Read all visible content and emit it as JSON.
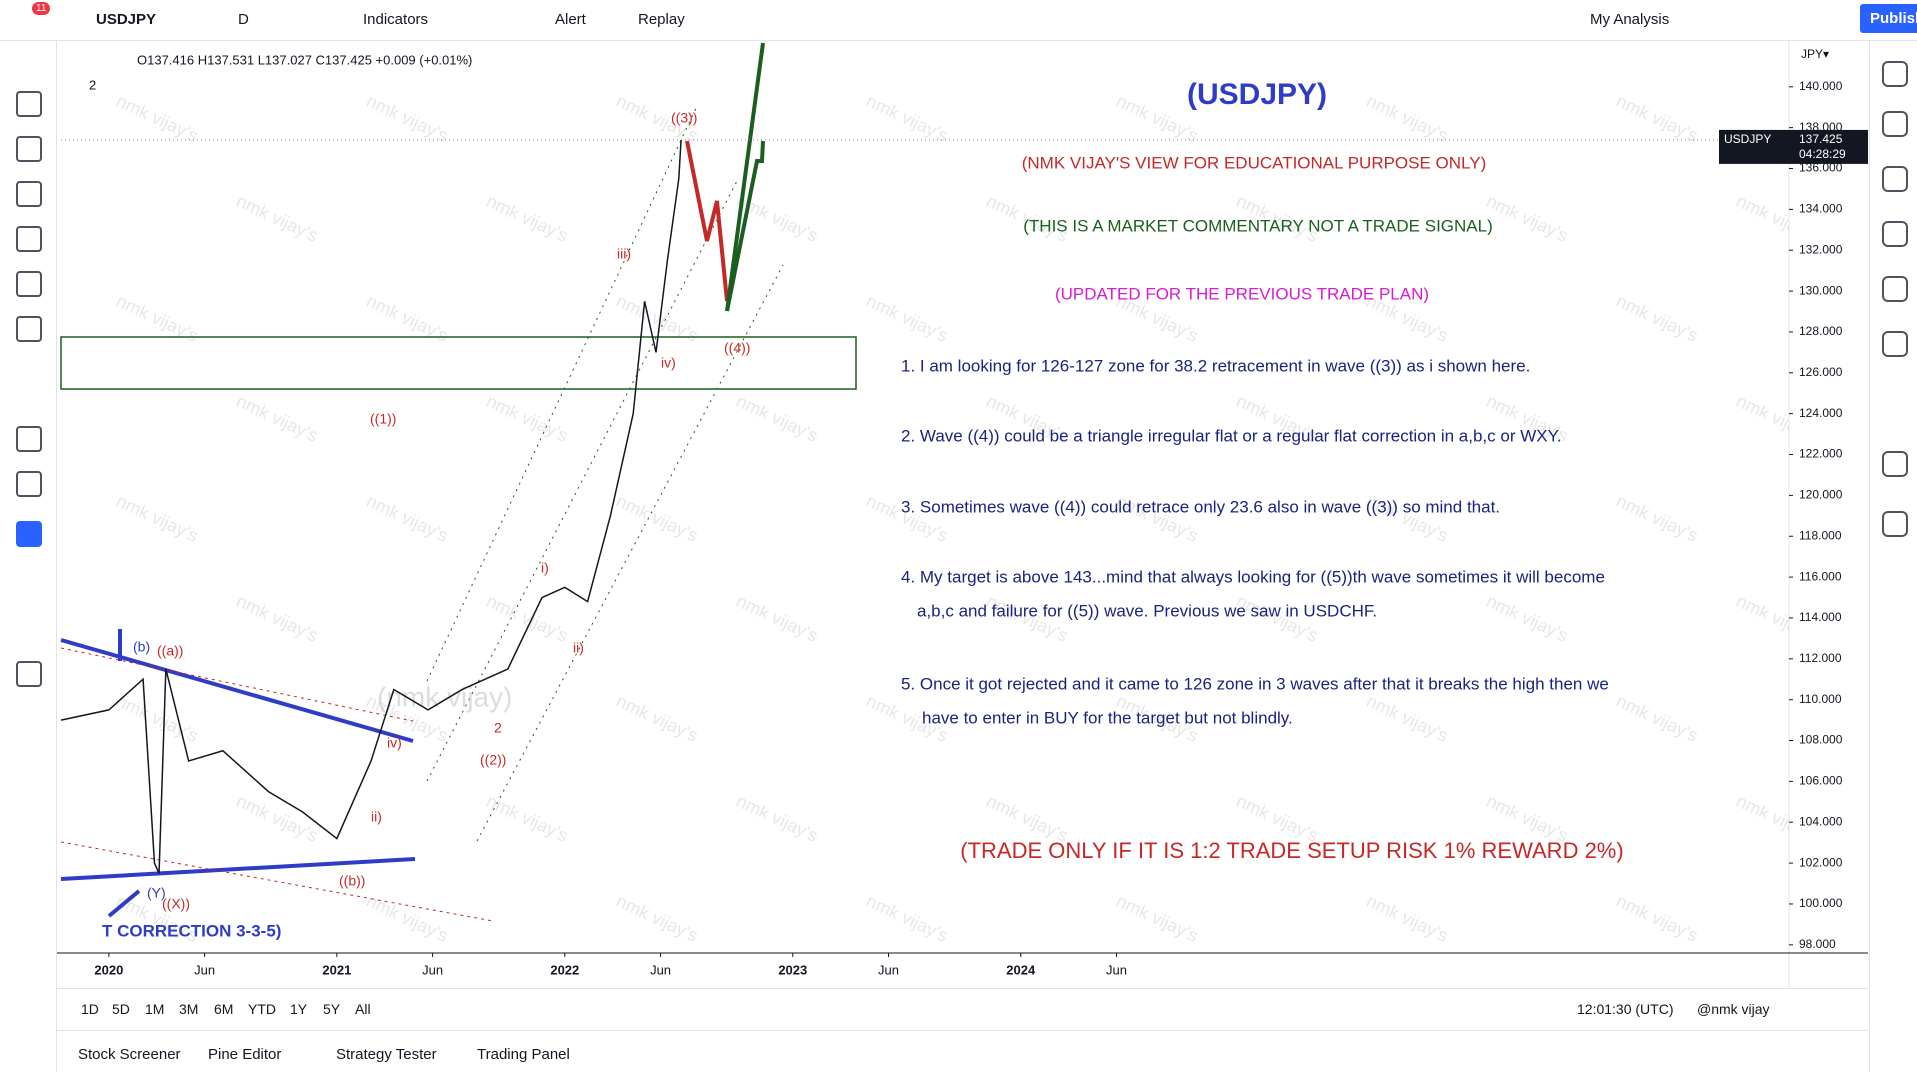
{
  "toolbar": {
    "badge": "11",
    "symbol": "USDJPY",
    "interval": "D",
    "indicators": "Indicators",
    "alert": "Alert",
    "replay": "Replay",
    "layout": "My Analysis",
    "publish": "Publish"
  },
  "legend": {
    "ohlc": "O137.416 H137.531 L137.027 C137.425 +0.009 (+0.01%)",
    "count": "2"
  },
  "chart_data": {
    "type": "line",
    "currency": "JPY▾",
    "price_tag": {
      "symbol": "USDJPY",
      "price": "137.425",
      "countdown": "04:28:29"
    },
    "x": [
      2019.79,
      2020.0,
      2020.15,
      2020.2,
      2020.22,
      2020.25,
      2020.35,
      2020.5,
      2020.7,
      2020.85,
      2021.0,
      2021.15,
      2021.25,
      2021.4,
      2021.55,
      2021.75,
      2021.9,
      2022.0,
      2022.1,
      2022.2,
      2022.3,
      2022.35,
      2022.4,
      2022.45,
      2022.5,
      2022.51
    ],
    "series": [
      {
        "name": "USDJPY",
        "color": "#131722",
        "values": [
          109,
          109.5,
          111,
          102,
          101.5,
          111.5,
          107,
          107.5,
          105.5,
          104.5,
          103.2,
          107,
          110.5,
          109.5,
          110.5,
          111.5,
          115,
          115.5,
          114.8,
          119,
          124,
          129.5,
          127,
          131.5,
          135.5,
          137.4
        ]
      }
    ],
    "xlim": [
      2019.79,
      2027.37
    ],
    "ylim": [
      97.6,
      141.85
    ],
    "xticks": [
      {
        "value": 2020,
        "label": "2020"
      },
      {
        "value": 2020.42,
        "label": "Jun"
      },
      {
        "value": 2021,
        "label": "2021"
      },
      {
        "value": 2021.42,
        "label": "Jun"
      },
      {
        "value": 2022,
        "label": "2022"
      },
      {
        "value": 2022.42,
        "label": "Jun"
      },
      {
        "value": 2023,
        "label": "2023"
      },
      {
        "value": 2023.42,
        "label": "Jun"
      },
      {
        "value": 2024,
        "label": "2024"
      },
      {
        "value": 2024.42,
        "label": "Jun"
      }
    ],
    "yticks": [
      {
        "value": 98,
        "label": "98.000"
      },
      {
        "value": 100,
        "label": "100.000"
      },
      {
        "value": 102,
        "label": "102.000"
      },
      {
        "value": 104,
        "label": "104.000"
      },
      {
        "value": 106,
        "label": "106.000"
      },
      {
        "value": 108,
        "label": "108.000"
      },
      {
        "value": 110,
        "label": "110.000"
      },
      {
        "value": 112,
        "label": "112.000"
      },
      {
        "value": 114,
        "label": "114.000"
      },
      {
        "value": 116,
        "label": "116.000"
      },
      {
        "value": 118,
        "label": "118.000"
      },
      {
        "value": 120,
        "label": "120.000"
      },
      {
        "value": 122,
        "label": "122.000"
      },
      {
        "value": 124,
        "label": "124.000"
      },
      {
        "value": 126,
        "label": "126.000"
      },
      {
        "value": 128,
        "label": "128.000"
      },
      {
        "value": 130,
        "label": "130.000"
      },
      {
        "value": 132,
        "label": "132.000"
      },
      {
        "value": 134,
        "label": "134.000"
      },
      {
        "value": 136,
        "label": "136.000"
      },
      {
        "value": 138,
        "label": "138.000"
      },
      {
        "value": 140,
        "label": "140.000"
      }
    ],
    "waves": [
      "((1))",
      "((2))",
      "((3))",
      "((4))",
      "((a))",
      "((b))",
      "((X))",
      "(b)",
      "(Y)",
      "iii)",
      "iv)",
      "i)",
      "ii)",
      "iv)",
      "ii)",
      "2"
    ],
    "correction": "T CORRECTION 3-3-5)",
    "watermark": "nmk vijay's",
    "center_watermark": "(nmk vijay)"
  },
  "commentary": {
    "title": "(USDJPY)",
    "disclaimer": "(NMK VIJAY'S VIEW FOR EDUCATIONAL PURPOSE ONLY)",
    "note": "(THIS IS A MARKET COMMENTARY NOT A TRADE SIGNAL)",
    "update": "(UPDATED FOR THE PREVIOUS TRADE PLAN)",
    "points": [
      "1. I am looking for 126-127 zone for 38.2 retracement in wave ((3)) as i shown here.",
      "2. Wave ((4)) could be a triangle irregular flat or a regular flat correction in a,b,c or WXY.",
      "3. Sometimes wave ((4)) could retrace only 23.6 also in wave ((3)) so mind that.",
      "4. My target is above 143...mind that always looking for ((5))th wave sometimes it will become",
      "a,b,c and failure for ((5)) wave. Previous we saw in USDCHF.",
      "5. Once it got rejected and it came to 126 zone in 3 waves after that it breaks the high then we",
      "have to enter in BUY for the target but not blindly."
    ],
    "risk": "(TRADE ONLY IF IT IS 1:2 TRADE SETUP RISK 1% REWARD 2%)"
  },
  "ranges": [
    "1D",
    "5D",
    "1M",
    "3M",
    "6M",
    "YTD",
    "1Y",
    "5Y",
    "All"
  ],
  "clock": "12:01:30 (UTC)",
  "signature": "@nmk vijay",
  "tabs": [
    "Stock Screener",
    "Pine Editor",
    "Strategy Tester",
    "Trading Panel"
  ]
}
